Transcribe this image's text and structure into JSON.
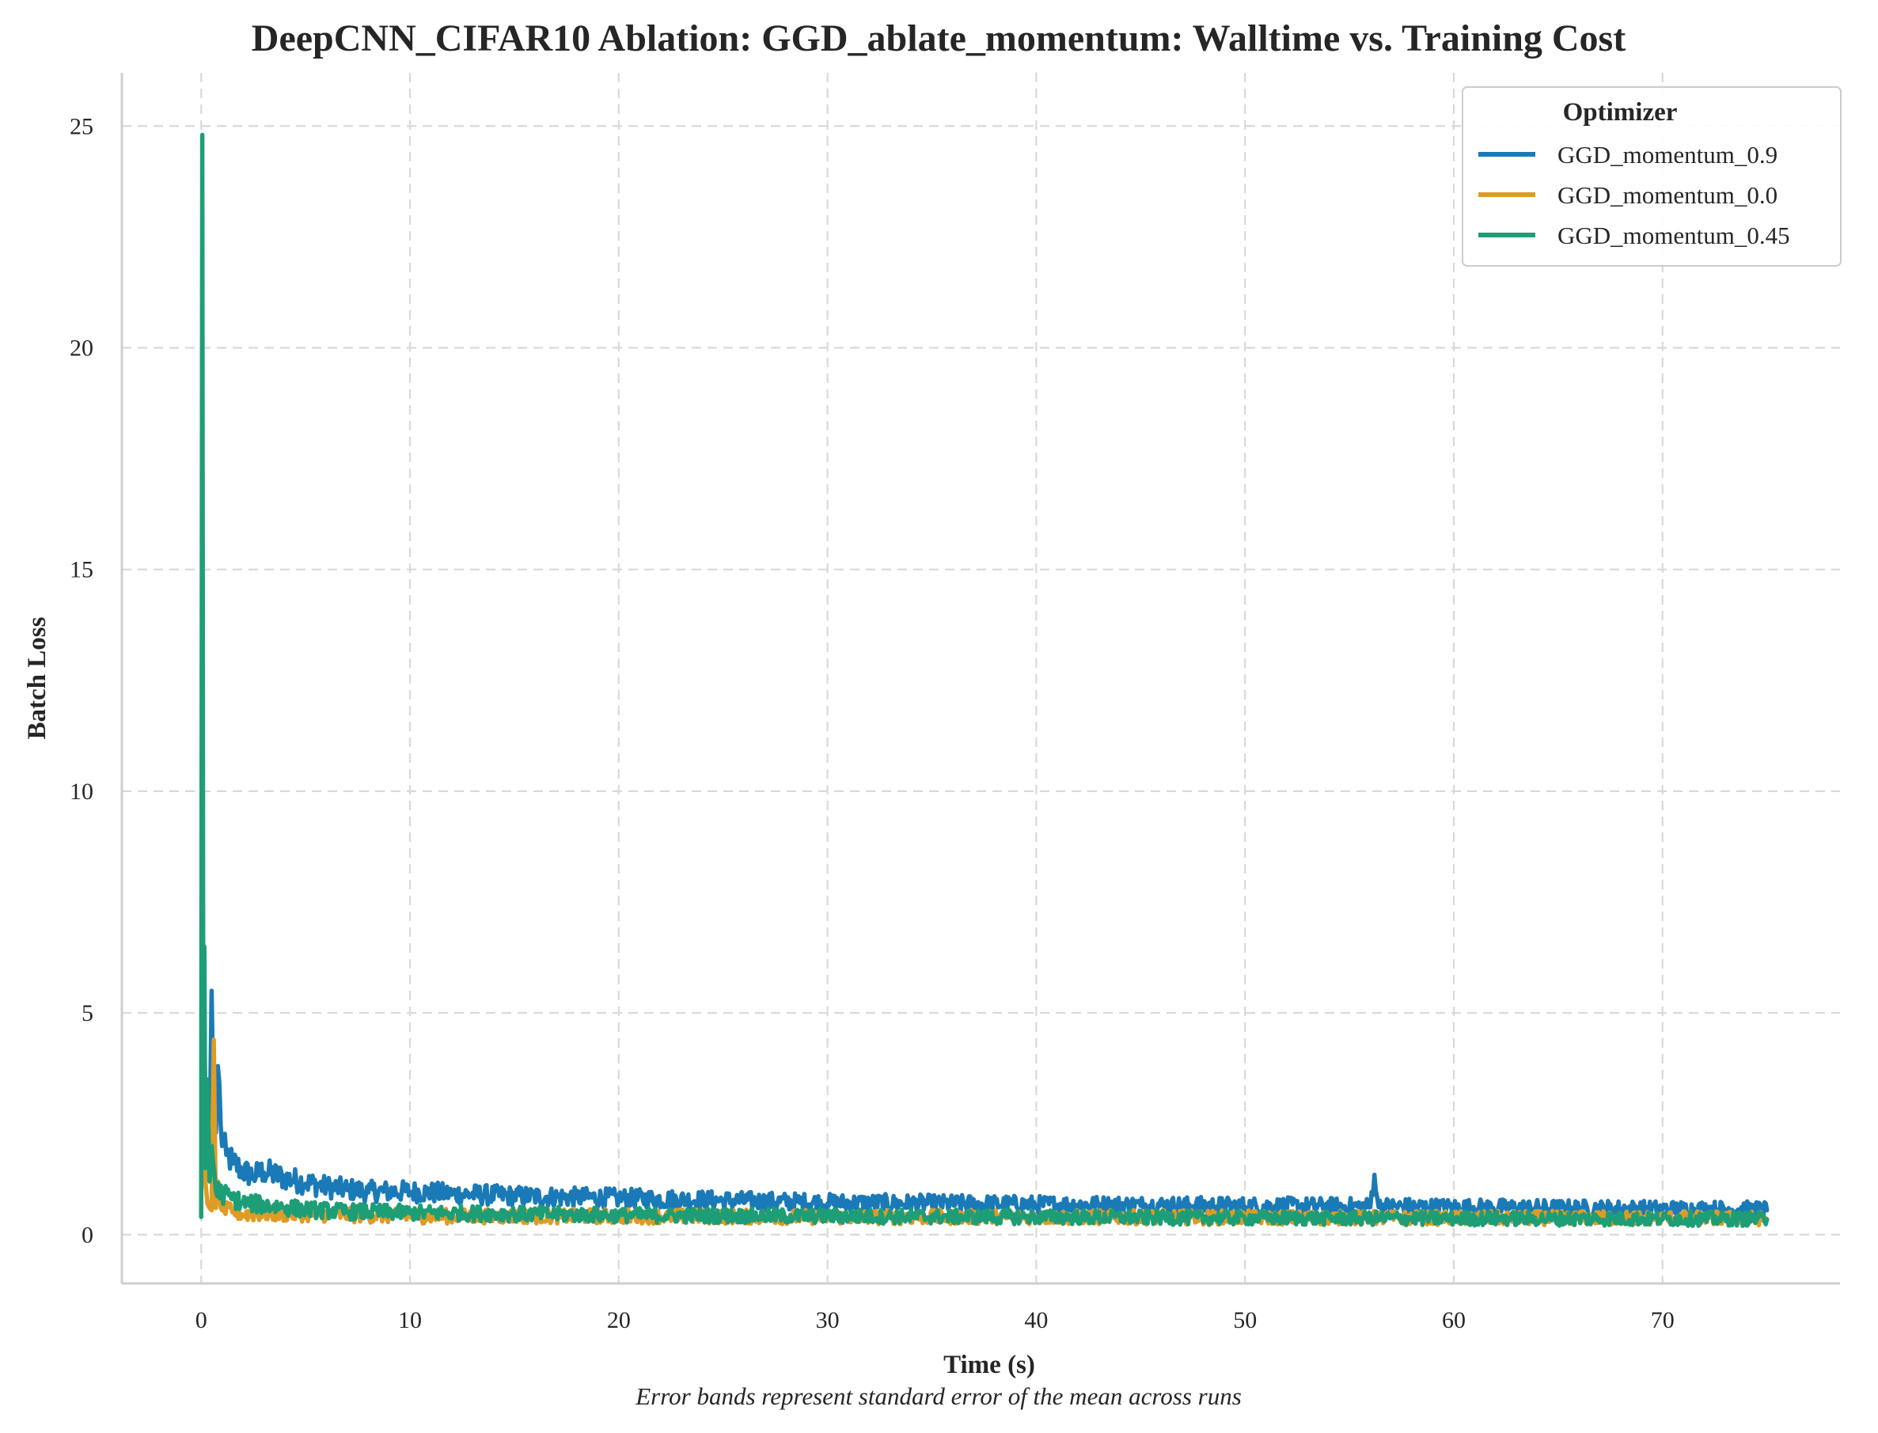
{
  "chart_data": {
    "type": "line",
    "title": "DeepCNN_CIFAR10 Ablation: GGD_ablate_momentum: Walltime vs. Training Cost",
    "xlabel": "Time (s)",
    "ylabel": "Batch Loss",
    "caption": "Error bands represent standard error of the mean across runs",
    "xlim": [
      -3.8,
      78.5
    ],
    "ylim": [
      -1.1,
      26.2
    ],
    "xticks": [
      0,
      10,
      20,
      30,
      40,
      50,
      60,
      70
    ],
    "yticks": [
      0,
      5,
      10,
      15,
      20,
      25
    ],
    "grid": true,
    "legend": {
      "title": "Optimizer",
      "placement": "top-right"
    },
    "series": [
      {
        "name": "GGD_momentum_0.9",
        "color": "#1a7ab8",
        "x": [
          0,
          0.1,
          0.2,
          0.3,
          0.4,
          0.5,
          0.6,
          0.7,
          0.8,
          1.0,
          1.2,
          1.5,
          2.0,
          2.5,
          3.0,
          4.0,
          5.0,
          6.0,
          7.0,
          8.0,
          10.0,
          12.0,
          15.0,
          18.0,
          20.0,
          25.0,
          30.0,
          35.0,
          40.0,
          45.0,
          50.0,
          55.0,
          56.0,
          56.2,
          56.4,
          60.0,
          65.0,
          70.0,
          75.0
        ],
        "y": [
          0.8,
          6.3,
          3.0,
          2.2,
          1.9,
          5.5,
          2.5,
          2.3,
          3.8,
          2.0,
          1.8,
          1.6,
          1.4,
          1.3,
          1.4,
          1.25,
          1.15,
          1.05,
          1.0,
          0.95,
          0.95,
          0.9,
          0.85,
          0.82,
          0.8,
          0.75,
          0.7,
          0.68,
          0.66,
          0.65,
          0.63,
          0.62,
          0.62,
          1.35,
          0.62,
          0.6,
          0.58,
          0.56,
          0.55
        ]
      },
      {
        "name": "GGD_momentum_0.0",
        "color": "#de9b25",
        "x": [
          0,
          0.1,
          0.2,
          0.3,
          0.4,
          0.5,
          0.6,
          0.7,
          0.8,
          1.0,
          1.5,
          2.0,
          3.0,
          5.0,
          8.0,
          10.0,
          15.0,
          20.0,
          30.0,
          40.0,
          50.0,
          60.0,
          70.0,
          75.0
        ],
        "y": [
          1.0,
          3.5,
          1.2,
          0.7,
          0.6,
          0.55,
          4.4,
          0.6,
          1.2,
          0.55,
          0.5,
          0.45,
          0.45,
          0.45,
          0.42,
          0.4,
          0.4,
          0.4,
          0.38,
          0.38,
          0.37,
          0.36,
          0.36,
          0.35
        ]
      },
      {
        "name": "GGD_momentum_0.45",
        "color": "#1d9e77",
        "x": [
          0,
          0.05,
          0.1,
          0.15,
          0.2,
          0.3,
          0.4,
          0.5,
          0.7,
          1.0,
          1.5,
          2.0,
          3.0,
          4.0,
          5.0,
          7.0,
          10.0,
          15.0,
          20.0,
          30.0,
          40.0,
          50.0,
          60.0,
          70.0,
          75.0
        ],
        "y": [
          0.4,
          24.8,
          3.0,
          6.5,
          1.5,
          3.5,
          1.2,
          2.0,
          1.0,
          0.9,
          0.8,
          0.7,
          0.65,
          0.6,
          0.55,
          0.5,
          0.48,
          0.45,
          0.42,
          0.4,
          0.38,
          0.36,
          0.35,
          0.34,
          0.34
        ]
      }
    ]
  }
}
